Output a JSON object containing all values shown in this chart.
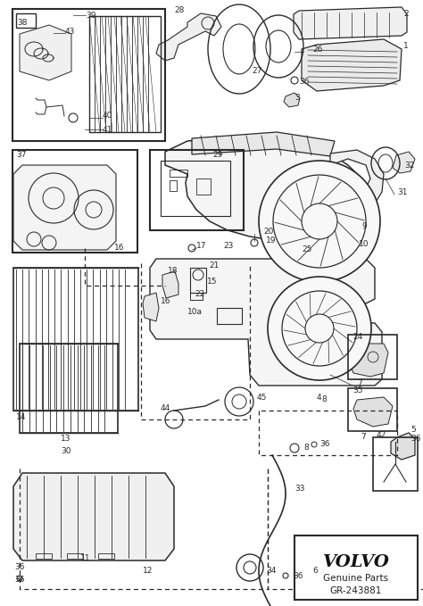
{
  "bg_color": "#ffffff",
  "fig_width": 4.74,
  "fig_height": 6.79,
  "dpi": 100,
  "line_color": "#2a2a2a",
  "volvo_text": "VOLVO",
  "genuine_parts_text": "Genuine Parts",
  "part_number_text": "GR-243881"
}
